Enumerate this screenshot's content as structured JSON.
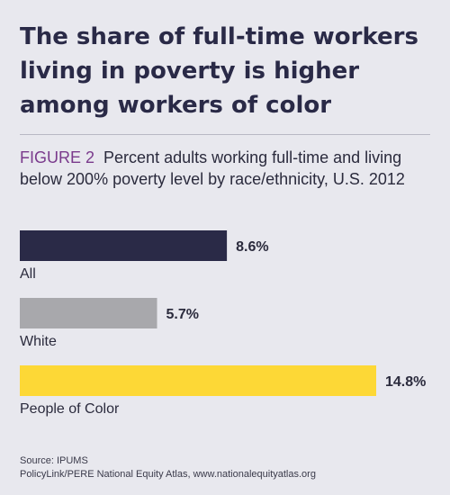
{
  "headline": "The share of full-time workers living in poverty is higher among workers of color",
  "figure_label": "FIGURE 2",
  "subtitle": "Percent adults working full-time and living below 200% poverty level by race/ethnicity, U.S. 2012",
  "source": "Source: IPUMS",
  "credit": "PolicyLink/PERE National Equity Atlas, www.nationalequityatlas.org",
  "chart_data": {
    "type": "bar",
    "orientation": "horizontal",
    "categories": [
      "All",
      "White",
      "People of Color"
    ],
    "values": [
      8.6,
      5.7,
      14.8
    ],
    "value_labels": [
      "8.6%",
      "5.7%",
      "14.8%"
    ],
    "colors": [
      "#2a2a47",
      "#a8a8ac",
      "#fdd836"
    ],
    "xlim": [
      0,
      14.8
    ],
    "grid": false,
    "legend": false
  }
}
